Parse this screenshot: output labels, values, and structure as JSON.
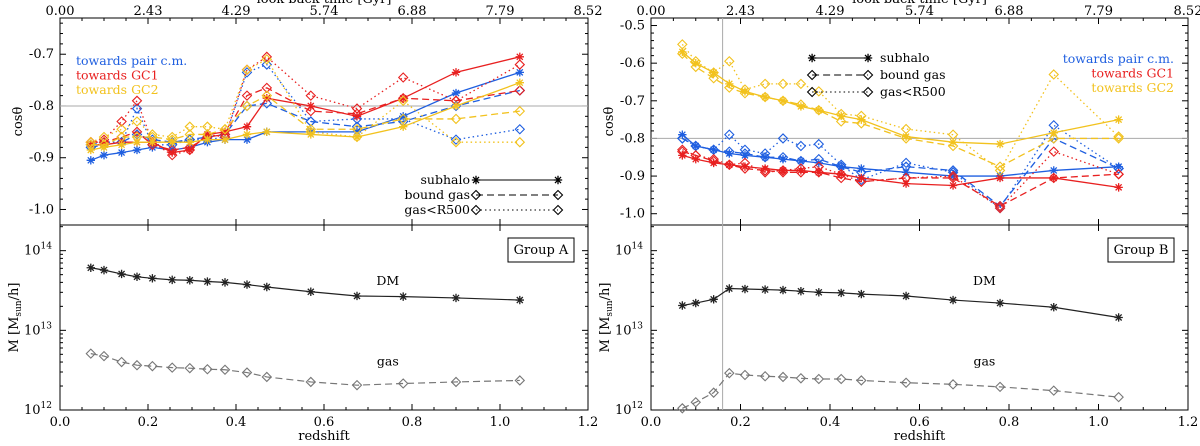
{
  "chart_data": [
    {
      "type": "line",
      "panel": "left",
      "top_axis": {
        "label": "look-back time [Gyr]",
        "ticks": [
          "0.00",
          "2.43",
          "4.29",
          "5.74",
          "6.88",
          "7.79",
          "8.52"
        ]
      },
      "xlabel": "redshift",
      "xlim": [
        0.0,
        1.2
      ],
      "xticks": [
        "0.0",
        "0.2",
        "0.4",
        "0.6",
        "0.8",
        "1.0",
        "1.2"
      ],
      "upper": {
        "ylabel": "cosθ",
        "ylim": [
          -1.03,
          -0.63
        ],
        "yticks": [
          "-1.0",
          "-0.9",
          "-0.8",
          "-0.7"
        ],
        "reference_line": -0.8,
        "direction_legend": [
          {
            "label": "towards pair c.m.",
            "color": "#1f5fe0"
          },
          {
            "label": "towards GC1",
            "color": "#e82020"
          },
          {
            "label": "towards GC2",
            "color": "#f2c21e"
          }
        ],
        "style_legend": [
          "subhalo",
          "bound gas",
          "gas<R500"
        ],
        "z": [
          0.07,
          0.1,
          0.14,
          0.175,
          0.21,
          0.255,
          0.295,
          0.335,
          0.375,
          0.425,
          0.47,
          0.57,
          0.675,
          0.78,
          0.9,
          1.045
        ],
        "series": [
          {
            "name": "towards pair c.m. subhalo",
            "direction": 0,
            "style": "subhalo",
            "values": [
              -0.905,
              -0.895,
              -0.89,
              -0.885,
              -0.88,
              -0.885,
              -0.88,
              -0.87,
              -0.865,
              -0.865,
              -0.85,
              -0.85,
              -0.85,
              -0.82,
              -0.775,
              -0.735
            ]
          },
          {
            "name": "towards pair c.m. bound gas",
            "direction": 0,
            "style": "bound gas",
            "values": [
              -0.88,
              -0.875,
              -0.87,
              -0.855,
              -0.865,
              -0.87,
              -0.865,
              -0.86,
              -0.855,
              -0.8,
              -0.795,
              -0.83,
              -0.84,
              -0.83,
              -0.8,
              -0.77
            ]
          },
          {
            "name": "towards pair c.m. gas<R500",
            "direction": 0,
            "style": "gas<R500",
            "values": [
              -0.875,
              -0.87,
              -0.87,
              -0.805,
              -0.875,
              -0.875,
              -0.865,
              -0.865,
              -0.86,
              -0.735,
              -0.72,
              -0.83,
              -0.825,
              -0.825,
              -0.865,
              -0.845
            ]
          },
          {
            "name": "towards GC1 subhalo",
            "direction": 1,
            "style": "subhalo",
            "values": [
              -0.875,
              -0.875,
              -0.87,
              -0.87,
              -0.87,
              -0.89,
              -0.885,
              -0.855,
              -0.85,
              -0.84,
              -0.785,
              -0.8,
              -0.82,
              -0.785,
              -0.735,
              -0.705
            ]
          },
          {
            "name": "towards GC1 bound gas",
            "direction": 1,
            "style": "bound gas",
            "values": [
              -0.87,
              -0.87,
              -0.86,
              -0.85,
              -0.875,
              -0.885,
              -0.88,
              -0.86,
              -0.855,
              -0.78,
              -0.765,
              -0.81,
              -0.815,
              -0.785,
              -0.79,
              -0.77
            ]
          },
          {
            "name": "towards GC1 gas<R500",
            "direction": 1,
            "style": "gas<R500",
            "values": [
              -0.87,
              -0.865,
              -0.83,
              -0.79,
              -0.87,
              -0.895,
              -0.885,
              -0.855,
              -0.86,
              -0.73,
              -0.705,
              -0.78,
              -0.805,
              -0.745,
              -0.79,
              -0.72
            ]
          },
          {
            "name": "towards GC2 subhalo",
            "direction": 2,
            "style": "subhalo",
            "values": [
              -0.885,
              -0.88,
              -0.875,
              -0.87,
              -0.87,
              -0.87,
              -0.87,
              -0.865,
              -0.865,
              -0.855,
              -0.85,
              -0.855,
              -0.86,
              -0.84,
              -0.8,
              -0.755
            ]
          },
          {
            "name": "towards GC2 bound gas",
            "direction": 2,
            "style": "bound gas",
            "values": [
              -0.875,
              -0.875,
              -0.86,
              -0.86,
              -0.86,
              -0.865,
              -0.855,
              -0.855,
              -0.845,
              -0.8,
              -0.78,
              -0.845,
              -0.845,
              -0.825,
              -0.825,
              -0.81
            ]
          },
          {
            "name": "towards GC2 gas<R500",
            "direction": 2,
            "style": "gas<R500",
            "values": [
              -0.87,
              -0.86,
              -0.845,
              -0.83,
              -0.855,
              -0.86,
              -0.84,
              -0.84,
              -0.845,
              -0.73,
              -0.71,
              -0.85,
              -0.86,
              -0.79,
              -0.87,
              -0.87
            ]
          }
        ]
      },
      "lower": {
        "ylabel": "M [M_sun/h]",
        "yscale": "log",
        "ylim": [
          1000000000000.0,
          210000000000000.0
        ],
        "yticks": [
          {
            "base": "10",
            "exp": "12"
          },
          {
            "base": "10",
            "exp": "13"
          },
          {
            "base": "10",
            "exp": "14"
          }
        ],
        "group_label": "Group A",
        "series_labels": [
          "DM",
          "gas"
        ],
        "series": [
          {
            "name": "DM",
            "z": [
              0.07,
              0.1,
              0.14,
              0.175,
              0.21,
              0.255,
              0.295,
              0.335,
              0.375,
              0.425,
              0.47,
              0.57,
              0.675,
              0.78,
              0.9,
              1.045
            ],
            "values": [
              61000000000000.0,
              57000000000000.0,
              51000000000000.0,
              47000000000000.0,
              45000000000000.0,
              43000000000000.0,
              42500000000000.0,
              41000000000000.0,
              40000000000000.0,
              37500000000000.0,
              35000000000000.0,
              30500000000000.0,
              27000000000000.0,
              26500000000000.0,
              25500000000000.0,
              24000000000000.0
            ]
          },
          {
            "name": "gas",
            "z": [
              0.07,
              0.1,
              0.14,
              0.175,
              0.21,
              0.255,
              0.295,
              0.335,
              0.375,
              0.425,
              0.47,
              0.57,
              0.675,
              0.78,
              0.9,
              1.045
            ],
            "values": [
              5100000000000.0,
              4750000000000.0,
              4000000000000.0,
              3650000000000.0,
              3550000000000.0,
              3400000000000.0,
              3350000000000.0,
              3250000000000.0,
              3200000000000.0,
              2950000000000.0,
              2600000000000.0,
              2250000000000.0,
              2050000000000.0,
              2150000000000.0,
              2250000000000.0,
              2350000000000.0
            ]
          }
        ]
      }
    },
    {
      "type": "line",
      "panel": "right",
      "top_axis": {
        "label": "look-back time [Gyr]",
        "ticks": [
          "0.00",
          "2.43",
          "4.29",
          "5.74",
          "6.88",
          "7.79",
          "8.52"
        ]
      },
      "xlabel": "redshift",
      "xlim": [
        0.0,
        1.2
      ],
      "xticks": [
        "0.0",
        "0.2",
        "0.4",
        "0.6",
        "0.8",
        "1.0",
        "1.2"
      ],
      "vertical_line_z": 0.16,
      "upper": {
        "ylabel": "cosθ",
        "ylim": [
          -1.03,
          -0.48
        ],
        "yticks": [
          "-1.0",
          "-0.9",
          "-0.8",
          "-0.7",
          "-0.6",
          "-0.5"
        ],
        "reference_line": -0.8,
        "direction_legend": [
          {
            "label": "towards pair c.m.",
            "color": "#1f5fe0"
          },
          {
            "label": "towards GC1",
            "color": "#e82020"
          },
          {
            "label": "towards GC2",
            "color": "#f2c21e"
          }
        ],
        "style_legend": [
          "subhalo",
          "bound gas",
          "gas<R500"
        ],
        "z": [
          0.07,
          0.1,
          0.14,
          0.175,
          0.21,
          0.255,
          0.295,
          0.335,
          0.375,
          0.425,
          0.47,
          0.57,
          0.675,
          0.78,
          0.9,
          1.045
        ],
        "series": [
          {
            "name": "towards pair c.m. subhalo",
            "direction": 0,
            "style": "subhalo",
            "values": [
              -0.79,
              -0.82,
              -0.83,
              -0.84,
              -0.845,
              -0.85,
              -0.855,
              -0.86,
              -0.865,
              -0.875,
              -0.88,
              -0.89,
              -0.9,
              -0.9,
              -0.885,
              -0.875
            ]
          },
          {
            "name": "towards pair c.m. bound gas",
            "direction": 0,
            "style": "bound gas",
            "values": [
              -0.8,
              -0.82,
              -0.83,
              -0.835,
              -0.84,
              -0.85,
              -0.85,
              -0.86,
              -0.855,
              -0.875,
              -0.89,
              -0.875,
              -0.885,
              -0.98,
              -0.8,
              -0.88
            ]
          },
          {
            "name": "towards pair c.m. gas<R500",
            "direction": 0,
            "style": "gas<R500",
            "values": [
              -0.8,
              -0.82,
              -0.83,
              -0.79,
              -0.83,
              -0.84,
              -0.8,
              -0.82,
              -0.815,
              -0.87,
              -0.91,
              -0.865,
              -0.89,
              -0.985,
              -0.765,
              -0.88
            ]
          },
          {
            "name": "towards GC1 subhalo",
            "direction": 1,
            "style": "subhalo",
            "values": [
              -0.845,
              -0.855,
              -0.865,
              -0.87,
              -0.875,
              -0.88,
              -0.885,
              -0.885,
              -0.89,
              -0.895,
              -0.905,
              -0.92,
              -0.925,
              -0.905,
              -0.905,
              -0.93
            ]
          },
          {
            "name": "towards GC1 bound gas",
            "direction": 1,
            "style": "bound gas",
            "values": [
              -0.835,
              -0.845,
              -0.86,
              -0.87,
              -0.88,
              -0.885,
              -0.89,
              -0.89,
              -0.89,
              -0.905,
              -0.915,
              -0.905,
              -0.905,
              -0.98,
              -0.905,
              -0.895
            ]
          },
          {
            "name": "towards GC1 gas<R500",
            "direction": 1,
            "style": "gas<R500",
            "values": [
              -0.83,
              -0.845,
              -0.855,
              -0.87,
              -0.865,
              -0.89,
              -0.885,
              -0.88,
              -0.875,
              -0.895,
              -0.915,
              -0.905,
              -0.9,
              -0.985,
              -0.835,
              -0.895
            ]
          },
          {
            "name": "towards GC2 subhalo",
            "direction": 2,
            "style": "subhalo",
            "values": [
              -0.57,
              -0.6,
              -0.625,
              -0.655,
              -0.675,
              -0.69,
              -0.7,
              -0.715,
              -0.725,
              -0.74,
              -0.75,
              -0.795,
              -0.81,
              -0.815,
              -0.785,
              -0.75
            ]
          },
          {
            "name": "towards GC2 bound gas",
            "direction": 2,
            "style": "bound gas",
            "values": [
              -0.575,
              -0.61,
              -0.64,
              -0.665,
              -0.68,
              -0.69,
              -0.7,
              -0.71,
              -0.725,
              -0.755,
              -0.76,
              -0.8,
              -0.82,
              -0.875,
              -0.8,
              -0.8
            ]
          },
          {
            "name": "towards GC2 gas<R500",
            "direction": 2,
            "style": "gas<R500",
            "values": [
              -0.55,
              -0.595,
              -0.625,
              -0.595,
              -0.67,
              -0.655,
              -0.655,
              -0.655,
              -0.675,
              -0.735,
              -0.74,
              -0.775,
              -0.79,
              -0.885,
              -0.63,
              -0.795
            ]
          }
        ]
      },
      "lower": {
        "ylabel": "M [M_sun/h]",
        "yscale": "log",
        "ylim": [
          1000000000000.0,
          210000000000000.0
        ],
        "yticks": [
          {
            "base": "10",
            "exp": "12"
          },
          {
            "base": "10",
            "exp": "13"
          },
          {
            "base": "10",
            "exp": "14"
          }
        ],
        "group_label": "Group B",
        "series_labels": [
          "DM",
          "gas"
        ],
        "series": [
          {
            "name": "DM",
            "z": [
              0.07,
              0.1,
              0.14,
              0.175,
              0.21,
              0.255,
              0.295,
              0.335,
              0.375,
              0.425,
              0.47,
              0.57,
              0.675,
              0.78,
              0.9,
              1.045
            ],
            "values": [
              20500000000000.0,
              22000000000000.0,
              24500000000000.0,
              33500000000000.0,
              33000000000000.0,
              32500000000000.0,
              32000000000000.0,
              31000000000000.0,
              30000000000000.0,
              29500000000000.0,
              28500000000000.0,
              27000000000000.0,
              24000000000000.0,
              22000000000000.0,
              19500000000000.0,
              14500000000000.0
            ]
          },
          {
            "name": "gas",
            "z": [
              0.07,
              0.1,
              0.14,
              0.175,
              0.21,
              0.255,
              0.295,
              0.335,
              0.375,
              0.425,
              0.47,
              0.57,
              0.675,
              0.78,
              0.9,
              1.045
            ],
            "values": [
              1050000000000.0,
              1250000000000.0,
              1650000000000.0,
              2900000000000.0,
              2750000000000.0,
              2650000000000.0,
              2600000000000.0,
              2500000000000.0,
              2450000000000.0,
              2450000000000.0,
              2350000000000.0,
              2200000000000.0,
              2100000000000.0,
              1950000000000.0,
              1750000000000.0,
              1450000000000.0
            ]
          }
        ]
      }
    }
  ]
}
